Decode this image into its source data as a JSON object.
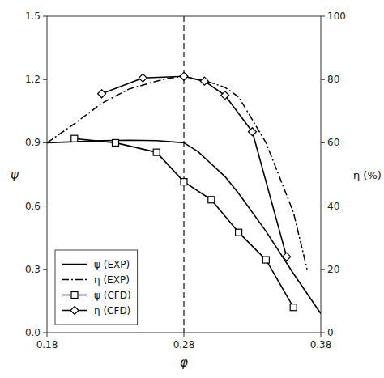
{
  "chart_data": {
    "type": "line",
    "xlabel": "φ",
    "ylabel": "ψ",
    "y2label": "η (%)",
    "xlim": [
      0.18,
      0.38
    ],
    "xticks": [
      0.18,
      0.28,
      0.38
    ],
    "ylim": [
      0,
      1.5
    ],
    "yticks": [
      {
        "value": 0,
        "label": "0.0"
      },
      {
        "value": 0.3,
        "label": "0.3"
      },
      {
        "value": 0.6,
        "label": "0.6"
      },
      {
        "value": 0.9,
        "label": "0.9"
      },
      {
        "value": 1.2,
        "label": "1.2"
      },
      {
        "value": 1.5,
        "label": "1.5"
      }
    ],
    "y2lim": [
      0,
      100
    ],
    "y2ticks": [
      0,
      20,
      40,
      60,
      80,
      100
    ],
    "grid": false,
    "legend": "lower left",
    "vlines": [
      0.28
    ],
    "series": [
      {
        "name": "ψ (EXP)",
        "color": "black",
        "line_style": "solid",
        "marker": "none",
        "axis": "y",
        "x": [
          0.18,
          0.2,
          0.22,
          0.24,
          0.26,
          0.28,
          0.29,
          0.3,
          0.31,
          0.32,
          0.34,
          0.36,
          0.38
        ],
        "values": [
          0.9,
          0.905,
          0.91,
          0.912,
          0.91,
          0.9,
          0.86,
          0.8,
          0.74,
          0.66,
          0.48,
          0.28,
          0.09
        ]
      },
      {
        "name": "η (EXP)",
        "color": "black",
        "line_style": "dashdot",
        "marker": "none",
        "axis": "y2",
        "x": [
          0.18,
          0.2,
          0.22,
          0.24,
          0.26,
          0.27,
          0.28,
          0.3,
          0.31,
          0.32,
          0.34,
          0.36,
          0.37
        ],
        "values": [
          60.0,
          66.0,
          72.5,
          77.0,
          79.5,
          80.5,
          81.0,
          79.0,
          77.5,
          74.5,
          60.0,
          38.0,
          20.0
        ]
      },
      {
        "name": "ψ (CFD)",
        "color": "black",
        "line_style": "solid",
        "marker": "square",
        "axis": "y",
        "x": [
          0.2,
          0.23,
          0.26,
          0.28,
          0.3,
          0.32,
          0.34,
          0.36
        ],
        "values": [
          0.92,
          0.9,
          0.855,
          0.715,
          0.63,
          0.475,
          0.345,
          0.12
        ]
      },
      {
        "name": "η (CFD)",
        "color": "black",
        "line_style": "solid",
        "marker": "diamond",
        "axis": "y2",
        "x": [
          0.22,
          0.25,
          0.28,
          0.295,
          0.31,
          0.33,
          0.355
        ],
        "values": [
          75.5,
          80.5,
          81.0,
          79.5,
          75.0,
          63.5,
          24.0
        ]
      }
    ]
  }
}
